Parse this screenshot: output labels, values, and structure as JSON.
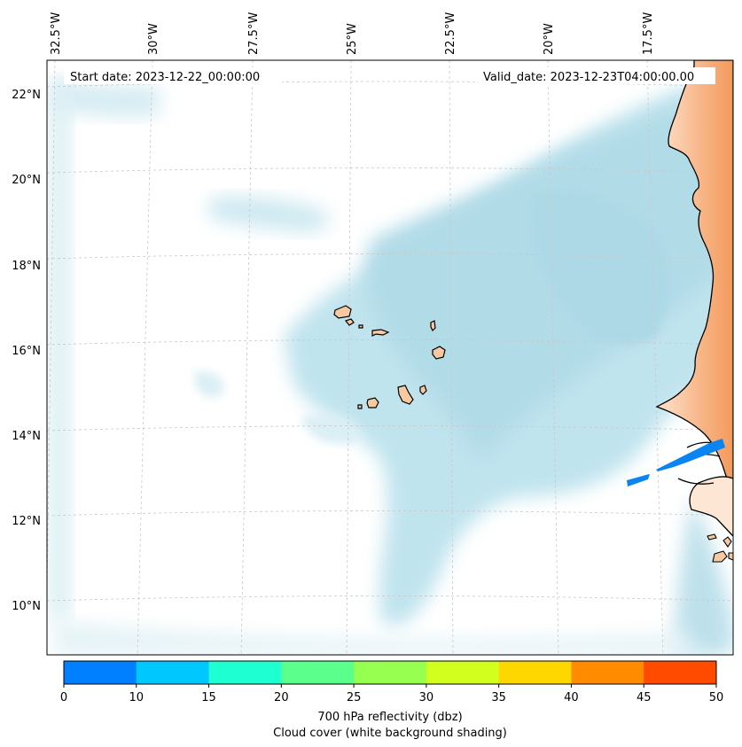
{
  "map": {
    "start_date": "Start date: 2023-12-22_00:00:00",
    "valid_date": "Valid_date: 2023-12-23T04:00:00.00",
    "longitude_labels": [
      "32.5°W",
      "30°W",
      "27.5°W",
      "25°W",
      "22.5°W",
      "20°W",
      "17.5°W"
    ],
    "latitude_labels": [
      "22°N",
      "20°N",
      "18°N",
      "16°N",
      "14°N",
      "12°N",
      "10°N"
    ],
    "colors": {
      "land": "#f7c9a2",
      "land_east": "#f4a46e",
      "cloud": "#a8d8e6",
      "reflectivity_band": "#0a84f0",
      "coastline": "#000000",
      "gridline": "#bdbdbd"
    }
  },
  "colorbar": {
    "ticks": [
      "0",
      "10",
      "15",
      "20",
      "25",
      "30",
      "35",
      "40",
      "45",
      "50"
    ],
    "colors": [
      "#0080ff",
      "#00c8ff",
      "#1effd2",
      "#5aff8c",
      "#96ff50",
      "#d2ff1e",
      "#ffd700",
      "#ff8c00",
      "#ff4b00"
    ],
    "label": "700 hPa reflectivity (dbz)",
    "sublabel": "Cloud cover (white background shading)"
  }
}
